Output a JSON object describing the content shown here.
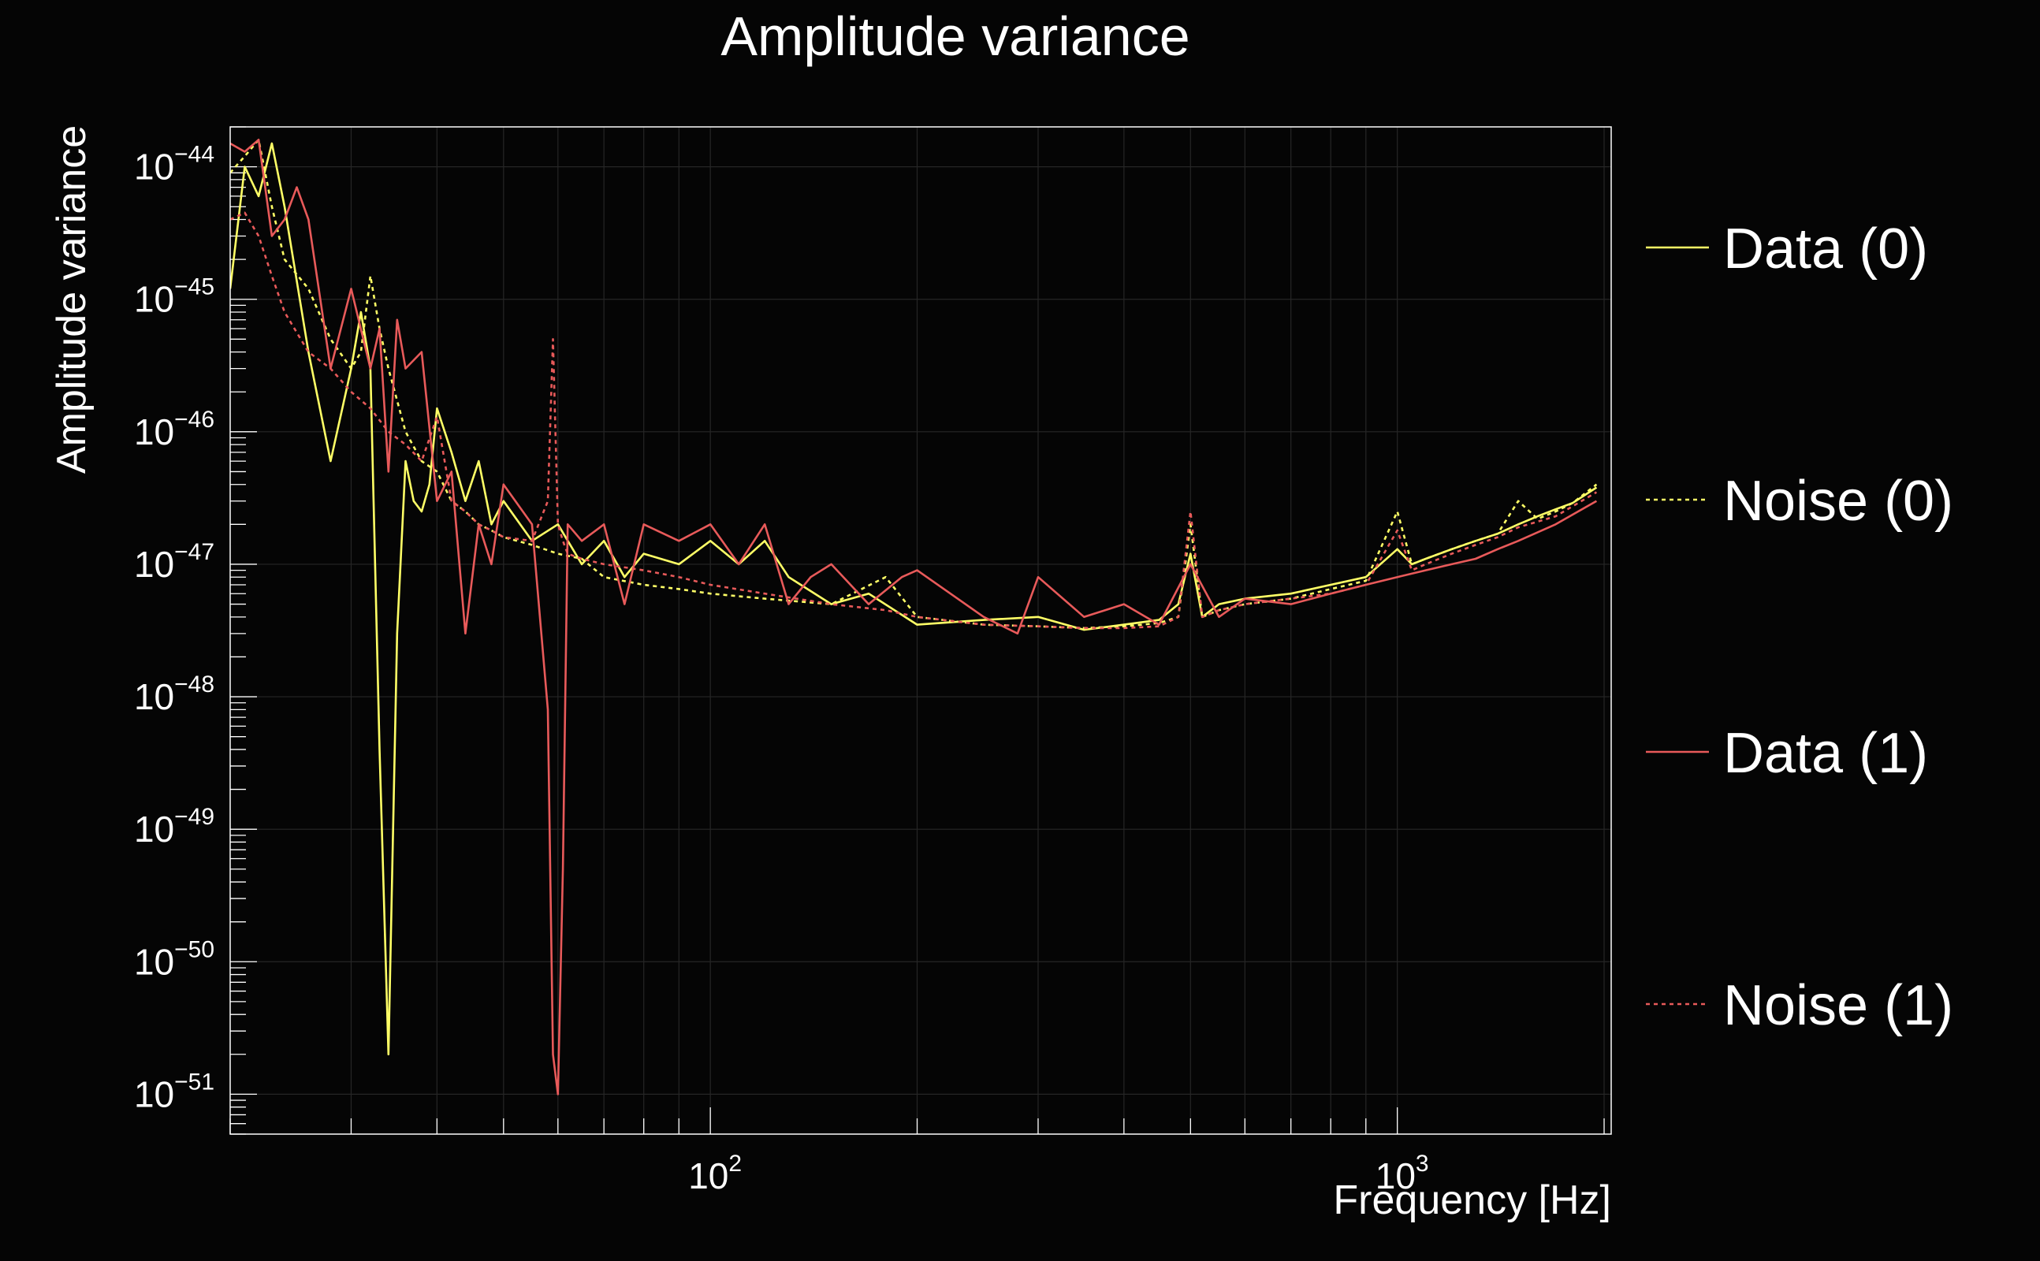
{
  "chart_data": {
    "type": "line",
    "title": "Amplitude variance",
    "xlabel": "Frequency [Hz]",
    "ylabel": "Amplitude variance",
    "x_scale": "log",
    "y_scale": "log",
    "xlim": [
      20,
      2048
    ],
    "ylim": [
      5e-52,
      2e-44
    ],
    "grid": true,
    "legend_position": "right",
    "background_color": "#050505",
    "axis_color": "#ffffff",
    "x_ticks": [
      {
        "label": "10",
        "exp": "2",
        "value": 100
      },
      {
        "label": "10",
        "exp": "3",
        "value": 1000
      }
    ],
    "y_ticks": [
      {
        "label": "10",
        "exp": "−44",
        "value": 1e-44
      },
      {
        "label": "10",
        "exp": "−45",
        "value": 1e-45
      },
      {
        "label": "10",
        "exp": "−46",
        "value": 1e-46
      },
      {
        "label": "10",
        "exp": "−47",
        "value": 1e-47
      },
      {
        "label": "10",
        "exp": "−48",
        "value": 1e-48
      },
      {
        "label": "10",
        "exp": "−49",
        "value": 1e-49
      },
      {
        "label": "10",
        "exp": "−50",
        "value": 1e-50
      },
      {
        "label": "10",
        "exp": "−51",
        "value": 1e-51
      }
    ],
    "series": [
      {
        "name": "Data (0)",
        "color": "#ffff66",
        "dash": "solid",
        "x": [
          20,
          21,
          22,
          23,
          24,
          26,
          28,
          30,
          31,
          32,
          33,
          34,
          35,
          36,
          37,
          38,
          39,
          40,
          42,
          44,
          46,
          48,
          50,
          55,
          60,
          65,
          70,
          75,
          80,
          90,
          100,
          110,
          120,
          130,
          150,
          170,
          200,
          250,
          300,
          350,
          400,
          450,
          480,
          500,
          520,
          550,
          600,
          700,
          800,
          900,
          1000,
          1050,
          1100,
          1200,
          1300,
          1400,
          1500,
          1600,
          1700,
          1800,
          1950
        ],
        "y": [
          1.2e-45,
          1e-44,
          6e-45,
          1.5e-44,
          5e-45,
          4e-46,
          6e-47,
          3e-46,
          8e-46,
          3e-46,
          4e-49,
          2e-51,
          3e-48,
          6e-47,
          3e-47,
          2.5e-47,
          4e-47,
          1.5e-46,
          7e-47,
          3e-47,
          6e-47,
          2e-47,
          3e-47,
          1.5e-47,
          2e-47,
          1e-47,
          1.5e-47,
          8e-48,
          1.2e-47,
          1e-47,
          1.5e-47,
          1e-47,
          1.5e-47,
          8e-48,
          5e-48,
          6e-48,
          3.5e-48,
          3.8e-48,
          4e-48,
          3.2e-48,
          3.5e-48,
          3.8e-48,
          5e-48,
          1.2e-47,
          4e-48,
          5e-48,
          5.5e-48,
          6e-48,
          7e-48,
          8e-48,
          1.3e-47,
          1e-47,
          1.1e-47,
          1.3e-47,
          1.5e-47,
          1.7e-47,
          2e-47,
          2.3e-47,
          2.6e-47,
          2.9e-47,
          3.8e-47
        ]
      },
      {
        "name": "Noise (0)",
        "color": "#ffff66",
        "dash": "dotted",
        "x": [
          20,
          21,
          22,
          23,
          24,
          26,
          28,
          30,
          31,
          32,
          33,
          34,
          36,
          38,
          40,
          42,
          44,
          46,
          48,
          50,
          55,
          60,
          65,
          70,
          80,
          90,
          100,
          120,
          150,
          180,
          200,
          250,
          300,
          350,
          400,
          450,
          480,
          500,
          520,
          550,
          600,
          700,
          800,
          900,
          1000,
          1050,
          1100,
          1200,
          1300,
          1400,
          1500,
          1600,
          1700,
          1800,
          1950
        ],
        "y": [
          9e-45,
          1.2e-44,
          1.6e-44,
          5e-45,
          2e-45,
          1.2e-45,
          5e-46,
          3e-46,
          4e-46,
          1.5e-45,
          6e-46,
          3e-46,
          1e-46,
          6e-47,
          5e-47,
          3e-47,
          2.5e-47,
          2e-47,
          1.8e-47,
          1.6e-47,
          1.4e-47,
          1.2e-47,
          1.1e-47,
          8e-48,
          7e-48,
          6.5e-48,
          6e-48,
          5.5e-48,
          5e-48,
          8e-48,
          4e-48,
          3.5e-48,
          3.4e-48,
          3.3e-48,
          3.4e-48,
          3.6e-48,
          4e-48,
          2e-47,
          4e-48,
          4.5e-48,
          5e-48,
          5.5e-48,
          6.5e-48,
          7.5e-48,
          2.5e-47,
          1e-47,
          1.1e-47,
          1.3e-47,
          1.5e-47,
          1.7e-47,
          3e-47,
          2.2e-47,
          2.5e-47,
          2.9e-47,
          4e-47
        ]
      },
      {
        "name": "Data (1)",
        "color": "#e85a5a",
        "dash": "solid",
        "x": [
          20,
          21,
          22,
          23,
          24,
          25,
          26,
          28,
          30,
          32,
          33,
          34,
          35,
          36,
          38,
          40,
          42,
          44,
          46,
          48,
          50,
          55,
          58,
          59,
          60,
          61,
          62,
          65,
          70,
          75,
          80,
          90,
          100,
          110,
          120,
          130,
          140,
          150,
          170,
          190,
          200,
          250,
          280,
          300,
          350,
          400,
          450,
          500,
          550,
          600,
          700,
          800,
          900,
          1000,
          1100,
          1200,
          1300,
          1400,
          1500,
          1700,
          1950
        ],
        "y": [
          1.5e-44,
          1.3e-44,
          1.6e-44,
          3e-45,
          4e-45,
          7e-45,
          4e-45,
          3e-46,
          1.2e-45,
          3e-46,
          6e-46,
          5e-47,
          7e-46,
          3e-46,
          4e-46,
          3e-47,
          5e-47,
          3e-48,
          2e-47,
          1e-47,
          4e-47,
          2e-47,
          8e-49,
          2e-51,
          1e-51,
          5e-50,
          2e-47,
          1.5e-47,
          2e-47,
          5e-48,
          2e-47,
          1.5e-47,
          2e-47,
          1e-47,
          2e-47,
          5e-48,
          8e-48,
          1e-47,
          5e-48,
          8e-48,
          9e-48,
          4e-48,
          3e-48,
          8e-48,
          4e-48,
          5e-48,
          3.5e-48,
          1e-47,
          4e-48,
          5.5e-48,
          5e-48,
          6e-48,
          7e-48,
          8e-48,
          9e-48,
          1e-47,
          1.1e-47,
          1.3e-47,
          1.5e-47,
          2e-47,
          3e-47
        ]
      },
      {
        "name": "Noise (1)",
        "color": "#e85a5a",
        "dash": "dotted",
        "x": [
          20,
          21,
          22,
          23,
          24,
          26,
          28,
          30,
          32,
          34,
          36,
          38,
          40,
          42,
          44,
          46,
          48,
          50,
          55,
          58,
          59,
          60,
          61,
          62,
          65,
          70,
          80,
          90,
          100,
          120,
          150,
          180,
          200,
          250,
          300,
          350,
          400,
          450,
          480,
          500,
          520,
          550,
          600,
          700,
          800,
          900,
          1000,
          1050,
          1100,
          1200,
          1300,
          1400,
          1500,
          1700,
          1950
        ],
        "y": [
          4e-45,
          4.5e-45,
          3e-45,
          1.5e-45,
          8e-46,
          4e-46,
          3e-46,
          2e-46,
          1.5e-46,
          1e-46,
          8e-47,
          6e-47,
          1.3e-46,
          3e-47,
          2.5e-47,
          2e-47,
          1.8e-47,
          1.6e-47,
          1.5e-47,
          3e-47,
          5e-46,
          2e-47,
          1.5e-47,
          1.2e-47,
          1.1e-47,
          1e-47,
          9e-48,
          8e-48,
          7e-48,
          6e-48,
          5e-48,
          4.5e-48,
          4e-48,
          3.5e-48,
          3.4e-48,
          3.3e-48,
          3.3e-48,
          3.4e-48,
          4e-48,
          2.5e-47,
          4e-48,
          4.5e-48,
          5e-48,
          5.5e-48,
          6e-48,
          7e-48,
          1.8e-47,
          9e-48,
          1e-47,
          1.2e-47,
          1.4e-47,
          1.6e-47,
          1.9e-47,
          2.3e-47,
          3.5e-47
        ]
      }
    ]
  }
}
